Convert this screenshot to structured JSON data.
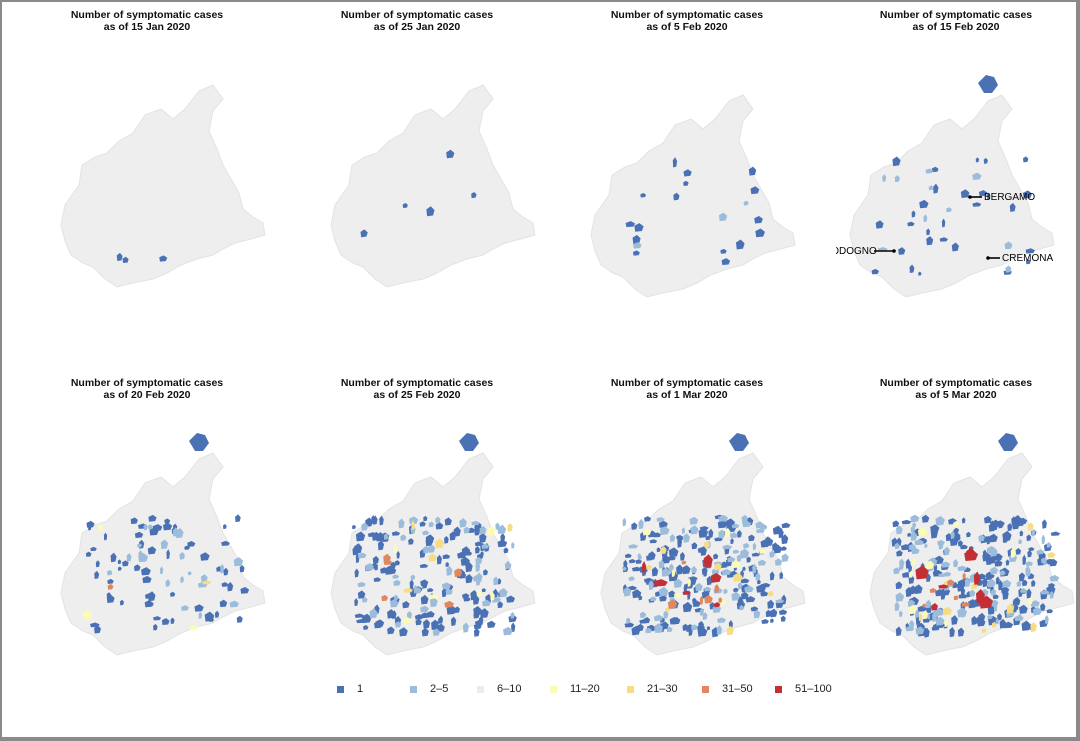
{
  "panel_title_line1": "Number of symptomatic cases",
  "panels": [
    {
      "date_line": "as of 15 Jan 2020",
      "cases": {
        "1": 3
      }
    },
    {
      "date_line": "as of 25 Jan 2020",
      "cases": {
        "1": 5
      }
    },
    {
      "date_line": "as of 5 Feb 2020",
      "cases": {
        "1": 16,
        "2-5": 3
      }
    },
    {
      "date_line": "as of 15 Feb 2020",
      "cases": {
        "1": 28,
        "2-5": 10
      },
      "annotations": [
        "BERGAMO",
        "CODOGNO",
        "CREMONA"
      ]
    },
    {
      "date_line": "as of 20 Feb 2020",
      "cases": {
        "1": 60,
        "2-5": 22,
        "11-20": 3,
        "21-30": 1,
        "31-50": 1
      }
    },
    {
      "date_line": "as of 25 Feb 2020",
      "cases": {
        "1": 130,
        "2-5": 55,
        "11-20": 6,
        "21-30": 5,
        "31-50": 5
      }
    },
    {
      "date_line": "as of 1 Mar 2020",
      "cases": {
        "1": 160,
        "2-5": 75,
        "11-20": 8,
        "21-30": 8,
        "31-50": 6,
        "51-100": 6
      }
    },
    {
      "date_line": "as of 5 Mar 2020",
      "cases": {
        "1": 175,
        "2-5": 85,
        "11-20": 10,
        "21-30": 10,
        "31-50": 6,
        "51-100": 8
      }
    }
  ],
  "legend": [
    {
      "label": "1",
      "color": "#4a71b4"
    },
    {
      "label": "2–5",
      "color": "#9bbcda"
    },
    {
      "label": "6–10",
      "color": "#ececf0"
    },
    {
      "label": "11–20",
      "color": "#fbfbb7"
    },
    {
      "label": "21–30",
      "color": "#f6dc83"
    },
    {
      "label": "31–50",
      "color": "#e1865e"
    },
    {
      "label": "51–100",
      "color": "#c32f34"
    }
  ],
  "base_region_color": "#eeeeef"
}
